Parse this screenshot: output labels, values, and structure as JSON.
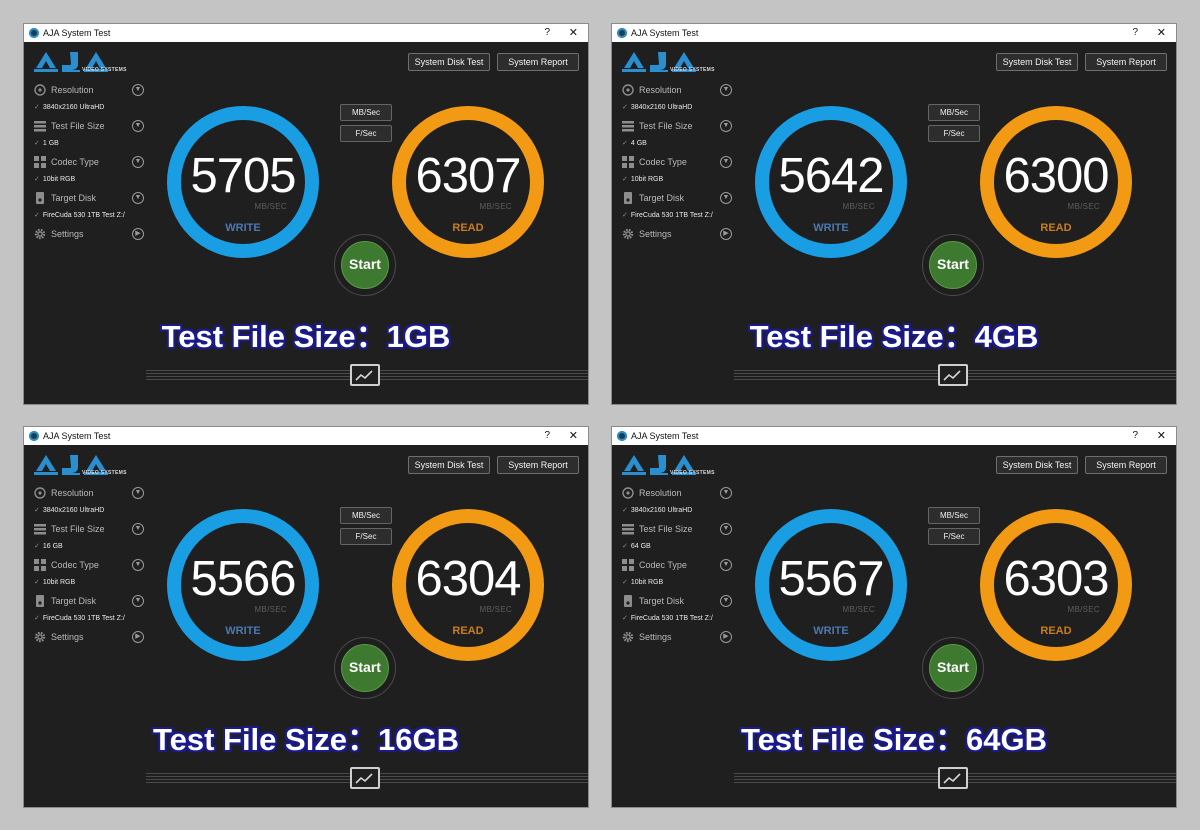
{
  "app": {
    "title": "AJA System Test",
    "help": "?",
    "close": "✕",
    "logo_sub": "VIDEO SYSTEMS",
    "buttons": {
      "disk_test": "System Disk Test",
      "report": "System Report"
    },
    "units": {
      "mb": "MB/Sec",
      "f": "F/Sec"
    },
    "labels": {
      "resolution": "Resolution",
      "file_size": "Test File Size",
      "codec": "Codec Type",
      "disk": "Target Disk",
      "settings": "Settings"
    },
    "unit_text": "MB/SEC",
    "write_label": "WRITE",
    "read_label": "READ",
    "start_label": "Start",
    "tick": "✓",
    "colors": {
      "write": "#1a9ee3",
      "read": "#f39a14",
      "start": "#3d7a2f",
      "caption_outline": "#1a1a8c"
    }
  },
  "panels": [
    {
      "resolution": "3840x2160 UltraHD",
      "file_size": "1 GB",
      "codec": "10bit RGB",
      "disk": "FireCuda 530 1TB Test Z:/",
      "write": "5705",
      "read": "6307",
      "caption": "Test File Size：1GB"
    },
    {
      "resolution": "3840x2160 UltraHD",
      "file_size": "4 GB",
      "codec": "10bit RGB",
      "disk": "FireCuda 530 1TB Test Z:/",
      "write": "5642",
      "read": "6300",
      "caption": "Test File Size：4GB"
    },
    {
      "resolution": "3840x2160 UltraHD",
      "file_size": "16 GB",
      "codec": "10bit RGB",
      "disk": "FireCuda 530 1TB Test Z:/",
      "write": "5566",
      "read": "6304",
      "caption": "Test File Size：16GB"
    },
    {
      "resolution": "3840x2160 UltraHD",
      "file_size": "64 GB",
      "codec": "10bit RGB",
      "disk": "FireCuda 530 1TB Test Z:/",
      "write": "5567",
      "read": "6303",
      "caption": "Test File Size：64GB"
    }
  ]
}
